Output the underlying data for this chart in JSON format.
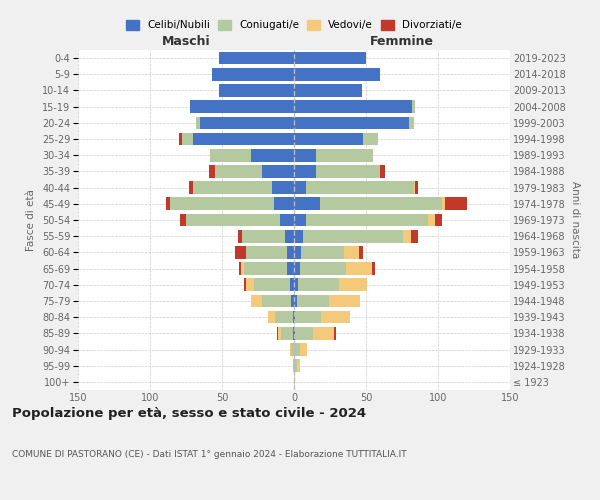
{
  "age_groups": [
    "100+",
    "95-99",
    "90-94",
    "85-89",
    "80-84",
    "75-79",
    "70-74",
    "65-69",
    "60-64",
    "55-59",
    "50-54",
    "45-49",
    "40-44",
    "35-39",
    "30-34",
    "25-29",
    "20-24",
    "15-19",
    "10-14",
    "5-9",
    "0-4"
  ],
  "birth_years": [
    "≤ 1923",
    "1924-1928",
    "1929-1933",
    "1934-1938",
    "1939-1943",
    "1944-1948",
    "1949-1953",
    "1954-1958",
    "1959-1963",
    "1964-1968",
    "1969-1973",
    "1974-1978",
    "1979-1983",
    "1984-1988",
    "1989-1993",
    "1994-1998",
    "1999-2003",
    "2004-2008",
    "2009-2013",
    "2014-2018",
    "2019-2023"
  ],
  "colors": {
    "celibi": "#4472c4",
    "coniugati": "#b5c9a0",
    "vedovi": "#f5c97a",
    "divorziati": "#c0392b"
  },
  "maschi": {
    "celibi": [
      0,
      0,
      0,
      1,
      1,
      2,
      3,
      5,
      5,
      6,
      10,
      14,
      15,
      22,
      30,
      70,
      65,
      72,
      52,
      57,
      52
    ],
    "coniugati": [
      0,
      1,
      2,
      8,
      12,
      20,
      25,
      30,
      28,
      30,
      65,
      72,
      55,
      33,
      28,
      8,
      3,
      0,
      0,
      0,
      0
    ],
    "vedovi": [
      0,
      0,
      1,
      2,
      5,
      8,
      5,
      2,
      0,
      0,
      0,
      0,
      0,
      0,
      0,
      0,
      0,
      0,
      0,
      0,
      0
    ],
    "divorziati": [
      0,
      0,
      0,
      1,
      0,
      0,
      2,
      1,
      8,
      3,
      4,
      3,
      3,
      4,
      0,
      2,
      0,
      0,
      0,
      0,
      0
    ]
  },
  "femmine": {
    "celibi": [
      0,
      0,
      0,
      1,
      1,
      2,
      3,
      4,
      5,
      6,
      8,
      18,
      8,
      15,
      15,
      48,
      80,
      82,
      47,
      60,
      50
    ],
    "coniugati": [
      0,
      2,
      4,
      12,
      18,
      22,
      28,
      32,
      30,
      70,
      85,
      85,
      75,
      45,
      40,
      10,
      3,
      2,
      0,
      0,
      0
    ],
    "vedovi": [
      1,
      2,
      5,
      15,
      20,
      22,
      20,
      18,
      10,
      5,
      5,
      2,
      1,
      0,
      0,
      0,
      0,
      0,
      0,
      0,
      0
    ],
    "divorziati": [
      0,
      0,
      0,
      1,
      0,
      0,
      0,
      2,
      3,
      5,
      5,
      15,
      2,
      3,
      0,
      0,
      0,
      0,
      0,
      0,
      0
    ]
  },
  "title": "Popolazione per età, sesso e stato civile - 2024",
  "subtitle": "COMUNE DI PASTORANO (CE) - Dati ISTAT 1° gennaio 2024 - Elaborazione TUTTITALIA.IT",
  "xlabel_left": "Maschi",
  "xlabel_right": "Femmine",
  "ylabel_left": "Fasce di età",
  "ylabel_right": "Anni di nascita",
  "legend_labels": [
    "Celibi/Nubili",
    "Coniugati/e",
    "Vedovi/e",
    "Divorziati/e"
  ],
  "xlim": 150,
  "bg_color": "#f0f0f0",
  "plot_bg": "#ffffff"
}
